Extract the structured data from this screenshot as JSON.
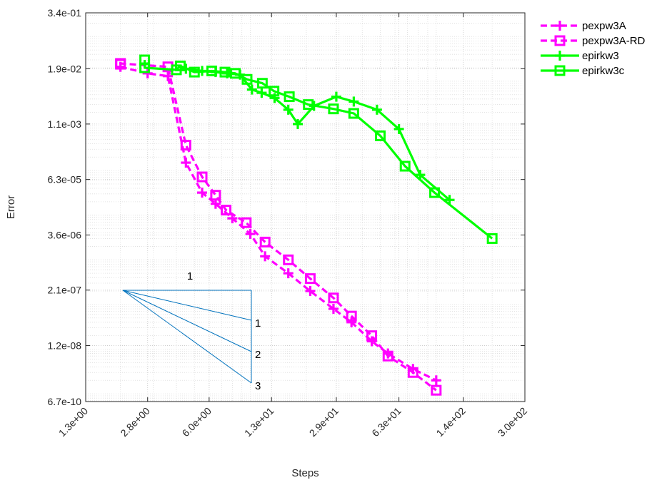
{
  "chart_data": {
    "type": "line",
    "xscale": "log",
    "yscale": "log",
    "xlabel": "Steps",
    "ylabel": "Error",
    "xlim": [
      1.3,
      300
    ],
    "ylim": [
      6.7e-10,
      0.34
    ],
    "xticks": [
      1.3,
      2.8,
      6.0,
      13,
      29,
      63,
      140,
      300
    ],
    "xtick_labels": [
      "1.3e+00",
      "2.8e+00",
      "6.0e+00",
      "1.3e+01",
      "2.9e+01",
      "6.3e+01",
      "1.4e+02",
      "3.0e+02"
    ],
    "yticks": [
      6.7e-10,
      1.2e-08,
      2.1e-07,
      3.6e-06,
      6.3e-05,
      0.0011,
      0.019,
      0.34
    ],
    "ytick_labels": [
      "6.7e-10",
      "1.2e-08",
      "2.1e-07",
      "3.6e-06",
      "6.3e-05",
      "1.1e-03",
      "1.9e-02",
      "3.4e-01"
    ],
    "grid": true,
    "legend_position": "outside-top-right",
    "series": [
      {
        "name": "pexpw3A",
        "color": "#ff00ff",
        "marker": "plus",
        "dashed": true,
        "x": [
          2.0,
          2.8,
          3.6,
          4.5,
          5.5,
          6.5,
          8.0,
          10,
          12,
          16,
          21,
          28,
          35,
          45,
          55,
          75,
          100
        ],
        "y": [
          0.021,
          0.015,
          0.013,
          0.00015,
          3.2e-05,
          1.8e-05,
          8.5e-06,
          3.8e-06,
          1.2e-06,
          5e-07,
          2e-07,
          8e-08,
          4e-08,
          1.5e-08,
          8e-09,
          3.6e-09,
          2e-09
        ]
      },
      {
        "name": "pexpw3A-RD",
        "color": "#ff00ff",
        "marker": "square",
        "dashed": true,
        "x": [
          2.0,
          2.0,
          3.6,
          4.5,
          5.5,
          6.5,
          7.4,
          9.5,
          12,
          16,
          21,
          28,
          35,
          45,
          55,
          75,
          100
        ],
        "y": [
          0.024,
          0.025,
          0.021,
          0.00037,
          7.2e-05,
          2.8e-05,
          1.3e-05,
          6.8e-06,
          2.5e-06,
          1e-06,
          3.8e-07,
          1.4e-07,
          5.5e-08,
          2e-08,
          7e-09,
          3e-09,
          1.2e-09
        ]
      },
      {
        "name": "epirkw3",
        "color": "#00ff00",
        "marker": "plus",
        "dashed": false,
        "x": [
          4.5,
          5.5,
          6.5,
          7.5,
          8.8,
          10.2,
          11.5,
          13.5,
          16,
          18,
          22,
          29,
          36,
          48,
          63,
          82,
          118
        ],
        "y": [
          0.019,
          0.017,
          0.016,
          0.015,
          0.014,
          0.0065,
          0.0055,
          0.0042,
          0.0023,
          0.0011,
          0.0028,
          0.0045,
          0.0035,
          0.0023,
          0.00085,
          8e-05,
          2.2e-05
        ]
      },
      {
        "name": "epirkw3c",
        "color": "#00ff00",
        "marker": "square",
        "dashed": false,
        "x": [
          2.7,
          2.7,
          4.0,
          4.2,
          5.0,
          6.2,
          7.3,
          8.3,
          9.6,
          11.6,
          13.4,
          16.2,
          20.5,
          28,
          36,
          50,
          68,
          98,
          200
        ],
        "y": [
          0.03,
          0.02,
          0.018,
          0.022,
          0.016,
          0.017,
          0.016,
          0.015,
          0.011,
          0.009,
          0.006,
          0.0045,
          0.003,
          0.0024,
          0.0019,
          0.0006,
          0.000125,
          3.2e-05,
          3e-06
        ]
      }
    ],
    "slope_triangle": {
      "label_top": "1",
      "labels_right": [
        "1",
        "2",
        "3"
      ]
    }
  }
}
